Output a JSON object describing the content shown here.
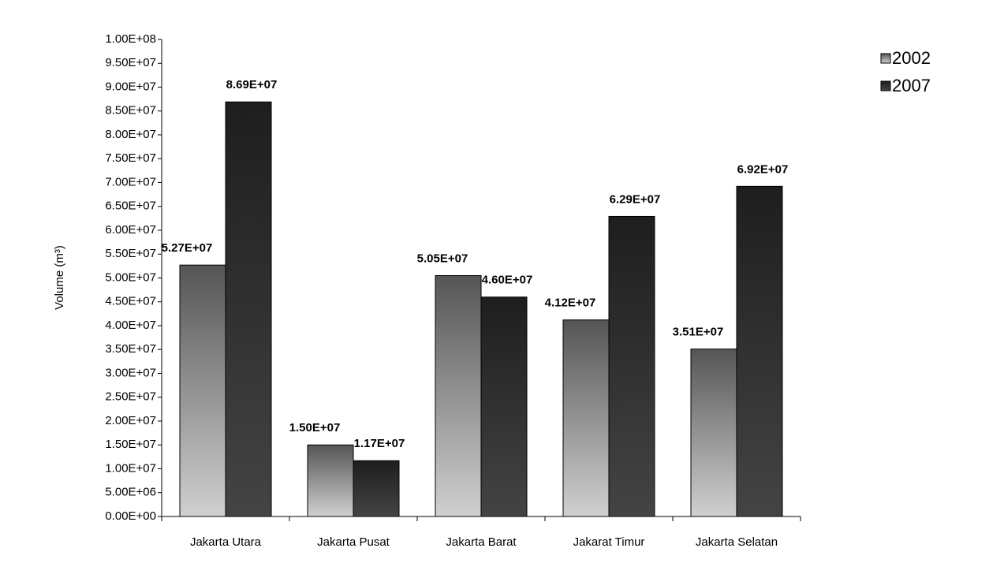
{
  "chart_data": {
    "type": "bar",
    "y_label": "Volume (m³)",
    "categories": [
      "Jakarta Utara",
      "Jakarta Pusat",
      "Jakarta Barat",
      "Jakarat Timur",
      "Jakarta Selatan"
    ],
    "series": [
      {
        "name": "2002",
        "color": "#555555",
        "values": [
          52700000,
          15000000,
          50500000,
          41200000,
          35100000
        ],
        "value_labels": [
          "5.27E+07",
          "1.50E+07",
          "5.05E+07",
          "4.12E+07",
          "3.51E+07"
        ]
      },
      {
        "name": "2007",
        "color": "#1e1e1e",
        "values": [
          86900000,
          11700000,
          46000000,
          62900000,
          69200000
        ],
        "value_labels": [
          "8.69E+07",
          "1.17E+07",
          "4.60E+07",
          "6.29E+07",
          "6.92E+07"
        ]
      }
    ],
    "ylim": [
      0,
      100000000
    ],
    "yticks": [
      {
        "value": 0,
        "label": "0.00E+00"
      },
      {
        "value": 5000000,
        "label": "5.00E+06"
      },
      {
        "value": 10000000,
        "label": "1.00E+07"
      },
      {
        "value": 15000000,
        "label": "1.50E+07"
      },
      {
        "value": 20000000,
        "label": "2.00E+07"
      },
      {
        "value": 25000000,
        "label": "2.50E+07"
      },
      {
        "value": 30000000,
        "label": "3.00E+07"
      },
      {
        "value": 35000000,
        "label": "3.50E+07"
      },
      {
        "value": 40000000,
        "label": "4.00E+07"
      },
      {
        "value": 45000000,
        "label": "4.50E+07"
      },
      {
        "value": 50000000,
        "label": "5.00E+07"
      },
      {
        "value": 55000000,
        "label": "5.50E+07"
      },
      {
        "value": 60000000,
        "label": "6.00E+07"
      },
      {
        "value": 65000000,
        "label": "6.50E+07"
      },
      {
        "value": 70000000,
        "label": "7.00E+07"
      },
      {
        "value": 75000000,
        "label": "7.50E+07"
      },
      {
        "value": 80000000,
        "label": "8.00E+07"
      },
      {
        "value": 85000000,
        "label": "8.50E+07"
      },
      {
        "value": 90000000,
        "label": "9.00E+07"
      },
      {
        "value": 95000000,
        "label": "9.50E+07"
      },
      {
        "value": 100000000,
        "label": "1.00E+08"
      }
    ],
    "grid": false,
    "legend_position": "top-right"
  }
}
